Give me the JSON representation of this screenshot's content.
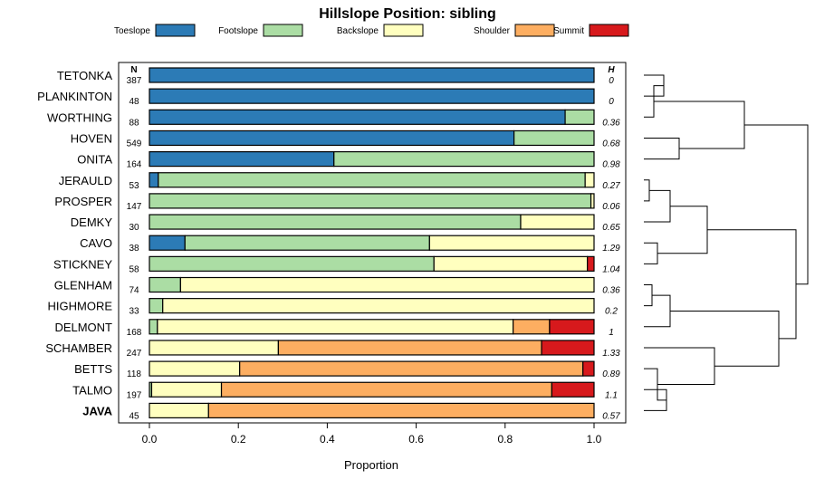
{
  "chart_data": {
    "type": "bar",
    "stacked": true,
    "orientation": "horizontal",
    "title": "Hillslope Position: sibling",
    "xlabel": "Proportion",
    "xlim": [
      0,
      1
    ],
    "xticks": [
      "0.0",
      "0.2",
      "0.4",
      "0.6",
      "0.8",
      "1.0"
    ],
    "n_header": "N",
    "h_header": "H",
    "legend_position": "top",
    "series": [
      {
        "name": "Toeslope",
        "color": "#2c7bb6"
      },
      {
        "name": "Footslope",
        "color": "#abdda4"
      },
      {
        "name": "Backslope",
        "color": "#ffffbf"
      },
      {
        "name": "Shoulder",
        "color": "#fdae61"
      },
      {
        "name": "Summit",
        "color": "#d7191c"
      }
    ],
    "rows": [
      {
        "label": "TETONKA",
        "n": "387",
        "h": "0",
        "values": [
          1.0,
          0,
          0,
          0,
          0
        ]
      },
      {
        "label": "PLANKINTON",
        "n": "48",
        "h": "0",
        "values": [
          1.0,
          0,
          0,
          0,
          0
        ]
      },
      {
        "label": "WORTHING",
        "n": "88",
        "h": "0.36",
        "values": [
          0.935,
          0.065,
          0,
          0,
          0
        ]
      },
      {
        "label": "HOVEN",
        "n": "549",
        "h": "0.68",
        "values": [
          0.82,
          0.18,
          0,
          0,
          0
        ]
      },
      {
        "label": "ONITA",
        "n": "164",
        "h": "0.98",
        "values": [
          0.415,
          0.585,
          0,
          0,
          0
        ]
      },
      {
        "label": "JERAULD",
        "n": "53",
        "h": "0.27",
        "values": [
          0.02,
          0.96,
          0.02,
          0,
          0
        ]
      },
      {
        "label": "PROSPER",
        "n": "147",
        "h": "0.06",
        "values": [
          0,
          0.993,
          0.007,
          0,
          0
        ]
      },
      {
        "label": "DEMKY",
        "n": "30",
        "h": "0.65",
        "values": [
          0,
          0.835,
          0.165,
          0,
          0
        ]
      },
      {
        "label": "CAVO",
        "n": "38",
        "h": "1.29",
        "values": [
          0.08,
          0.55,
          0.37,
          0,
          0
        ]
      },
      {
        "label": "STICKNEY",
        "n": "58",
        "h": "1.04",
        "values": [
          0,
          0.64,
          0.345,
          0,
          0.015
        ]
      },
      {
        "label": "GLENHAM",
        "n": "74",
        "h": "0.36",
        "values": [
          0,
          0.07,
          0.93,
          0,
          0
        ]
      },
      {
        "label": "HIGHMORE",
        "n": "33",
        "h": "0.2",
        "values": [
          0,
          0.03,
          0.97,
          0,
          0
        ]
      },
      {
        "label": "DELMONT",
        "n": "168",
        "h": "1",
        "values": [
          0,
          0.018,
          0.8,
          0.082,
          0.1
        ]
      },
      {
        "label": "SCHAMBER",
        "n": "247",
        "h": "1.33",
        "values": [
          0,
          0,
          0.29,
          0.592,
          0.118
        ]
      },
      {
        "label": "BETTS",
        "n": "118",
        "h": "0.89",
        "values": [
          0,
          0,
          0.203,
          0.772,
          0.025
        ]
      },
      {
        "label": "TALMO",
        "n": "197",
        "h": "1.1",
        "values": [
          0,
          0.005,
          0.157,
          0.743,
          0.095
        ]
      },
      {
        "label": "JAVA",
        "n": "45",
        "h": "0.57",
        "values": [
          0,
          0,
          0.133,
          0.867,
          0
        ],
        "bold": true
      }
    ]
  }
}
